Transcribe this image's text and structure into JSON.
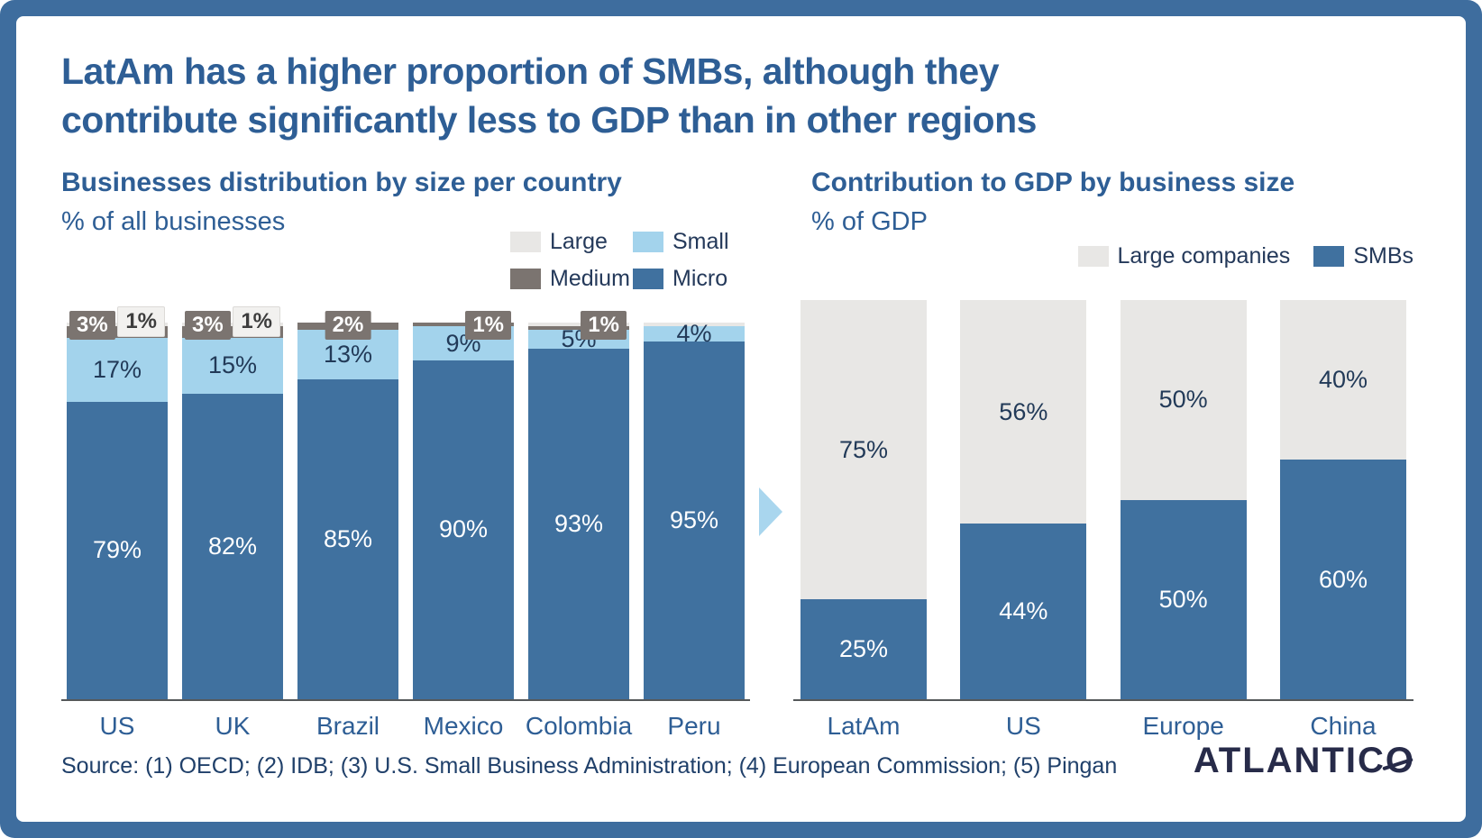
{
  "page": {
    "title_lines": [
      "LatAm has a higher proportion of SMBs, although they",
      "contribute significantly less to GDP than in other regions"
    ],
    "source": "Source: (1) OECD; (2) IDB; (3) U.S. Small Business Administration; (4) European Commission; (5) Pingan",
    "logo_prefix": "ATLANTIC",
    "logo_last": "O"
  },
  "colors": {
    "frame": "#3e6d9e",
    "micro": "#40719f",
    "small": "#a3d3ec",
    "medium": "#7b7470",
    "large": "#e8e7e5",
    "title_text": "#2e5e95",
    "arrow": "#a9d6ee",
    "axis": "#55585a"
  },
  "chart_data": [
    {
      "type": "bar",
      "stacked": true,
      "title": "Businesses distribution by size per country",
      "subtitle": "% of all businesses",
      "unit": "%",
      "ylim": [
        0,
        100
      ],
      "grid": false,
      "legend_position": "top-right",
      "categories": [
        "US",
        "UK",
        "Brazil",
        "Mexico",
        "Colombia",
        "Peru"
      ],
      "series": [
        {
          "name": "Micro",
          "color_key": "micro",
          "values": [
            79,
            82,
            85,
            90,
            93,
            95
          ],
          "labels_inside": true,
          "label_style": "light"
        },
        {
          "name": "Small",
          "color_key": "small",
          "values": [
            17,
            15,
            13,
            9,
            5,
            4
          ],
          "labels_inside": true,
          "label_style": "dark"
        },
        {
          "name": "Medium",
          "color_key": "medium",
          "values": [
            3,
            3,
            2,
            1,
            1,
            0
          ],
          "labels_inside": false
        },
        {
          "name": "Large",
          "color_key": "large",
          "values": [
            1,
            1,
            0,
            0,
            1,
            1
          ],
          "labels_inside": false
        }
      ],
      "top_chips": [
        [
          {
            "text": "3%",
            "style": "dark",
            "pos": "left"
          },
          {
            "text": "1%",
            "style": "light",
            "pos": "right"
          }
        ],
        [
          {
            "text": "3%",
            "style": "dark",
            "pos": "left"
          },
          {
            "text": "1%",
            "style": "light",
            "pos": "right"
          }
        ],
        [
          {
            "text": "2%",
            "style": "dark",
            "pos": "center"
          }
        ],
        [
          {
            "text": "1%",
            "style": "dark",
            "pos": "right"
          }
        ],
        [
          {
            "text": "1%",
            "style": "dark",
            "pos": "right"
          }
        ],
        []
      ],
      "legend": [
        {
          "label": "Large",
          "color_key": "large"
        },
        {
          "label": "Small",
          "color_key": "small"
        },
        {
          "label": "Medium",
          "color_key": "medium"
        },
        {
          "label": "Micro",
          "color_key": "micro"
        }
      ]
    },
    {
      "type": "bar",
      "stacked": true,
      "title": "Contribution to GDP by business size",
      "subtitle": "% of GDP",
      "unit": "%",
      "ylim": [
        0,
        100
      ],
      "grid": false,
      "legend_position": "top-right",
      "categories": [
        "LatAm",
        "US",
        "Europe",
        "China"
      ],
      "series": [
        {
          "name": "SMBs",
          "color_key": "micro",
          "values": [
            25,
            44,
            50,
            60
          ],
          "labels_inside": true,
          "label_style": "light"
        },
        {
          "name": "Large companies",
          "color_key": "large",
          "values": [
            75,
            56,
            50,
            40
          ],
          "labels_inside": true,
          "label_style": "dark"
        }
      ],
      "top_chips": [
        [],
        [],
        [],
        []
      ],
      "legend": [
        {
          "label": "Large companies",
          "color_key": "large"
        },
        {
          "label": "SMBs",
          "color_key": "micro"
        }
      ]
    }
  ]
}
